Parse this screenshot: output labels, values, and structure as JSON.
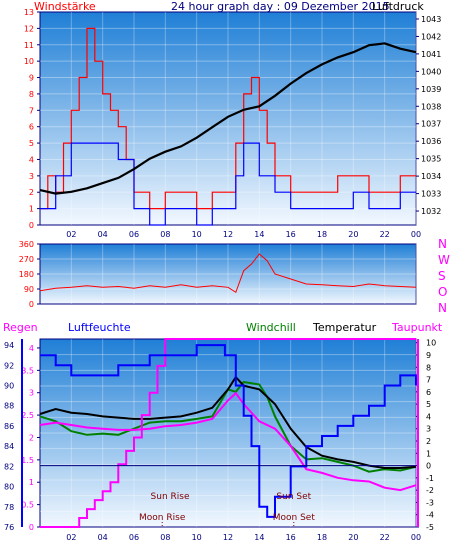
{
  "header": {
    "left_label": "Windstärke",
    "title": "24 hour graph day : 09 Dezember 2015",
    "right_label": "Luftdruck"
  },
  "colors": {
    "red": "#ff0000",
    "blue": "#0000ff",
    "black": "#000000",
    "green": "#008000",
    "magenta": "#ff00ff",
    "navy": "#0000a0",
    "frame": "#000080",
    "bg_top": "#1f7fd6",
    "bg_bottom": "#f2f8ff"
  },
  "x_ticks": [
    "02",
    "04",
    "06",
    "08",
    "10",
    "12",
    "14",
    "16",
    "18",
    "20",
    "22",
    "00"
  ],
  "chart_data": [
    {
      "type": "line",
      "title": "24 hour graph day : 09 Dezember 2015",
      "x_range": [
        0,
        24
      ],
      "left_axis": {
        "label": "Windstärke",
        "ticks": [
          0,
          1,
          2,
          3,
          4,
          5,
          6,
          7,
          8,
          9,
          10,
          11,
          12,
          13
        ],
        "range": [
          0,
          13
        ]
      },
      "right_axis": {
        "label": "Luftdruck",
        "ticks": [
          1032,
          1033,
          1034,
          1035,
          1036,
          1037,
          1038,
          1039,
          1040,
          1041,
          1042,
          1043
        ],
        "range": [
          1031.2,
          1043.4
        ]
      },
      "series": [
        {
          "color": "#ff0000",
          "axis": "left",
          "points": [
            [
              0,
              1
            ],
            [
              0.5,
              3
            ],
            [
              1,
              2
            ],
            [
              1.5,
              5
            ],
            [
              2,
              7
            ],
            [
              2.5,
              9
            ],
            [
              3,
              12
            ],
            [
              3.5,
              10
            ],
            [
              4,
              8
            ],
            [
              4.5,
              7
            ],
            [
              5,
              6
            ],
            [
              5.5,
              4
            ],
            [
              6,
              2
            ],
            [
              6.5,
              2
            ],
            [
              7,
              1
            ],
            [
              8,
              2
            ],
            [
              9,
              2
            ],
            [
              10,
              1
            ],
            [
              11,
              2
            ],
            [
              12,
              2
            ],
            [
              12.5,
              5
            ],
            [
              13,
              8
            ],
            [
              13.5,
              9
            ],
            [
              14,
              7
            ],
            [
              14.5,
              5
            ],
            [
              15,
              3
            ],
            [
              16,
              2
            ],
            [
              17,
              2
            ],
            [
              18,
              2
            ],
            [
              19,
              3
            ],
            [
              20,
              3
            ],
            [
              21,
              2
            ],
            [
              22,
              2
            ],
            [
              23,
              3
            ],
            [
              24,
              3
            ]
          ]
        },
        {
          "color": "#0000ff",
          "axis": "left",
          "points": [
            [
              0,
              1
            ],
            [
              1,
              3
            ],
            [
              2,
              5
            ],
            [
              3,
              5
            ],
            [
              4,
              5
            ],
            [
              5,
              4
            ],
            [
              6,
              1
            ],
            [
              7,
              0
            ],
            [
              8,
              1
            ],
            [
              9,
              1
            ],
            [
              10,
              0
            ],
            [
              11,
              1
            ],
            [
              12,
              1
            ],
            [
              12.5,
              3
            ],
            [
              13,
              5
            ],
            [
              14,
              3
            ],
            [
              15,
              2
            ],
            [
              16,
              1
            ],
            [
              17,
              1
            ],
            [
              18,
              1
            ],
            [
              19,
              1
            ],
            [
              20,
              2
            ],
            [
              21,
              1
            ],
            [
              22,
              1
            ],
            [
              23,
              2
            ],
            [
              24,
              2
            ]
          ]
        },
        {
          "color": "#000000",
          "axis": "right",
          "points": [
            [
              0,
              1033.2
            ],
            [
              1,
              1033.0
            ],
            [
              2,
              1033.1
            ],
            [
              3,
              1033.3
            ],
            [
              4,
              1033.6
            ],
            [
              5,
              1033.9
            ],
            [
              6,
              1034.4
            ],
            [
              7,
              1035.0
            ],
            [
              8,
              1035.4
            ],
            [
              9,
              1035.7
            ],
            [
              10,
              1036.2
            ],
            [
              11,
              1036.8
            ],
            [
              12,
              1037.4
            ],
            [
              13,
              1037.8
            ],
            [
              14,
              1038.0
            ],
            [
              15,
              1038.6
            ],
            [
              16,
              1039.3
            ],
            [
              17,
              1039.9
            ],
            [
              18,
              1040.4
            ],
            [
              19,
              1040.8
            ],
            [
              20,
              1041.1
            ],
            [
              21,
              1041.5
            ],
            [
              22,
              1041.6
            ],
            [
              23,
              1041.3
            ],
            [
              24,
              1041.1
            ]
          ]
        }
      ]
    },
    {
      "type": "line",
      "title": "",
      "x_range": [
        0,
        24
      ],
      "left_axis": {
        "ticks": [
          0,
          90,
          180,
          270,
          360
        ],
        "range": [
          0,
          360
        ]
      },
      "right_axis": {
        "ticks": [
          "N",
          "W",
          "S",
          "O",
          "N"
        ]
      },
      "series": [
        {
          "color": "#ff0000",
          "axis": "left",
          "points": [
            [
              0,
              80
            ],
            [
              1,
              95
            ],
            [
              2,
              100
            ],
            [
              3,
              110
            ],
            [
              4,
              100
            ],
            [
              5,
              105
            ],
            [
              6,
              95
            ],
            [
              7,
              110
            ],
            [
              8,
              100
            ],
            [
              9,
              115
            ],
            [
              10,
              100
            ],
            [
              11,
              110
            ],
            [
              12,
              100
            ],
            [
              12.5,
              70
            ],
            [
              13,
              200
            ],
            [
              13.5,
              240
            ],
            [
              14,
              300
            ],
            [
              14.5,
              260
            ],
            [
              15,
              180
            ],
            [
              16,
              150
            ],
            [
              17,
              120
            ],
            [
              18,
              115
            ],
            [
              19,
              110
            ],
            [
              20,
              105
            ],
            [
              21,
              120
            ],
            [
              22,
              110
            ],
            [
              23,
              105
            ],
            [
              24,
              100
            ]
          ]
        }
      ]
    },
    {
      "type": "line",
      "title": "",
      "x_range": [
        0,
        24
      ],
      "left_axis_regen": {
        "label": "Regen",
        "ticks": [
          0,
          0.5,
          1,
          1.5,
          2,
          2.5,
          3,
          3.5,
          4
        ],
        "range": [
          0,
          4.2
        ]
      },
      "left_axis_humidity": {
        "label": "Luftfeuchte",
        "ticks": [
          76,
          78,
          80,
          82,
          84,
          86,
          88,
          90,
          92,
          94
        ],
        "range": [
          76,
          94.6
        ]
      },
      "right_axis": {
        "label": "Temperatur",
        "ticks": [
          -5,
          -4,
          -3,
          -2,
          -1,
          0,
          1,
          2,
          3,
          4,
          5,
          6,
          7,
          8,
          9,
          10
        ],
        "range": [
          -5,
          10.3
        ]
      },
      "series": [
        {
          "name": "Windchill",
          "color": "#008000",
          "axis": "right",
          "points": [
            [
              0,
              4
            ],
            [
              1,
              3.6
            ],
            [
              2,
              2.8
            ],
            [
              3,
              2.5
            ],
            [
              4,
              2.6
            ],
            [
              5,
              2.5
            ],
            [
              6,
              3
            ],
            [
              7,
              3.5
            ],
            [
              8,
              3.6
            ],
            [
              9,
              3.6
            ],
            [
              10,
              3.8
            ],
            [
              11,
              4.0
            ],
            [
              12,
              6.2
            ],
            [
              12.5,
              6.0
            ],
            [
              13,
              6.8
            ],
            [
              14,
              6.6
            ],
            [
              14.5,
              5.6
            ],
            [
              15,
              4.0
            ],
            [
              16,
              1.6
            ],
            [
              17,
              0.5
            ],
            [
              18,
              0.6
            ],
            [
              19,
              0.3
            ],
            [
              20,
              0
            ],
            [
              21,
              -0.5
            ],
            [
              22,
              -0.3
            ],
            [
              23,
              -0.4
            ],
            [
              24,
              -0.1
            ]
          ]
        },
        {
          "name": "Temperatur",
          "color": "#000000",
          "axis": "right",
          "points": [
            [
              0,
              4.2
            ],
            [
              1,
              4.6
            ],
            [
              2,
              4.3
            ],
            [
              3,
              4.2
            ],
            [
              4,
              4.0
            ],
            [
              5,
              3.9
            ],
            [
              6,
              3.8
            ],
            [
              7,
              3.8
            ],
            [
              8,
              3.9
            ],
            [
              9,
              4.0
            ],
            [
              10,
              4.3
            ],
            [
              11,
              4.7
            ],
            [
              12,
              6.2
            ],
            [
              12.5,
              7.2
            ],
            [
              13,
              6.5
            ],
            [
              14,
              6.2
            ],
            [
              15,
              5.0
            ],
            [
              16,
              3.0
            ],
            [
              17,
              1.5
            ],
            [
              18,
              0.8
            ],
            [
              19,
              0.5
            ],
            [
              20,
              0.3
            ],
            [
              21,
              0
            ],
            [
              22,
              -0.2
            ],
            [
              23,
              -0.2
            ],
            [
              24,
              -0.1
            ]
          ]
        },
        {
          "name": "Taupunkt",
          "color": "#ff00ff",
          "axis": "right",
          "points": [
            [
              0,
              3.3
            ],
            [
              1,
              3.5
            ],
            [
              2,
              3.3
            ],
            [
              3,
              3.1
            ],
            [
              4,
              3.0
            ],
            [
              5,
              2.9
            ],
            [
              6,
              2.9
            ],
            [
              7,
              3.0
            ],
            [
              8,
              3.2
            ],
            [
              9,
              3.3
            ],
            [
              10,
              3.5
            ],
            [
              11,
              3.8
            ],
            [
              12,
              5.3
            ],
            [
              12.5,
              5.9
            ],
            [
              13,
              5.0
            ],
            [
              14,
              3.6
            ],
            [
              15,
              3.0
            ],
            [
              16,
              1.6
            ],
            [
              17,
              -0.3
            ],
            [
              18,
              -0.6
            ],
            [
              19,
              -1.0
            ],
            [
              20,
              -1.2
            ],
            [
              21,
              -1.3
            ],
            [
              22,
              -1.8
            ],
            [
              23,
              -2.0
            ],
            [
              24,
              -1.6
            ]
          ]
        },
        {
          "name": "Regen",
          "color": "#ff00ff",
          "axis": "regen",
          "step": true,
          "points": [
            [
              0,
              0
            ],
            [
              2,
              0
            ],
            [
              2.5,
              0.2
            ],
            [
              3,
              0.4
            ],
            [
              3.5,
              0.6
            ],
            [
              4,
              0.8
            ],
            [
              4.5,
              1.0
            ],
            [
              5,
              1.4
            ],
            [
              5.5,
              1.7
            ],
            [
              6,
              2.0
            ],
            [
              6.5,
              2.5
            ],
            [
              7,
              3.0
            ],
            [
              7.5,
              3.6
            ],
            [
              8,
              4.2
            ],
            [
              24,
              4.2
            ]
          ]
        },
        {
          "name": "Luftfeuchte",
          "color": "#0000ff",
          "axis": "humidity",
          "step": true,
          "points": [
            [
              0,
              93
            ],
            [
              1,
              92
            ],
            [
              2,
              91
            ],
            [
              4,
              91
            ],
            [
              5,
              92
            ],
            [
              7,
              93
            ],
            [
              9,
              93
            ],
            [
              10,
              94
            ],
            [
              11,
              94
            ],
            [
              11.8,
              93
            ],
            [
              12.5,
              90
            ],
            [
              13,
              87
            ],
            [
              13.5,
              84
            ],
            [
              14,
              78
            ],
            [
              14.5,
              77
            ],
            [
              15,
              79
            ],
            [
              16,
              82
            ],
            [
              17,
              84
            ],
            [
              18,
              85
            ],
            [
              19,
              86
            ],
            [
              20,
              87
            ],
            [
              21,
              88
            ],
            [
              22,
              90
            ],
            [
              23,
              91
            ],
            [
              24,
              90
            ]
          ]
        },
        {
          "name": "Zero",
          "color": "#000080",
          "axis": "right",
          "points": [
            [
              0,
              0
            ],
            [
              24,
              0
            ]
          ]
        }
      ],
      "annotations": [
        {
          "text": "Sun Rise",
          "x": 8.3
        },
        {
          "text": "Moon Rise",
          "x": 7.8
        },
        {
          "text": "Sun Set",
          "x": 16.2
        },
        {
          "text": "Moon Set",
          "x": 16.2
        }
      ]
    }
  ],
  "legend_bottom": {
    "regen": "Regen",
    "luftfeuchte": "Luftfeuchte",
    "windchill": "Windchill",
    "temperatur": "Temperatur",
    "taupunkt": "Taupunkt"
  }
}
